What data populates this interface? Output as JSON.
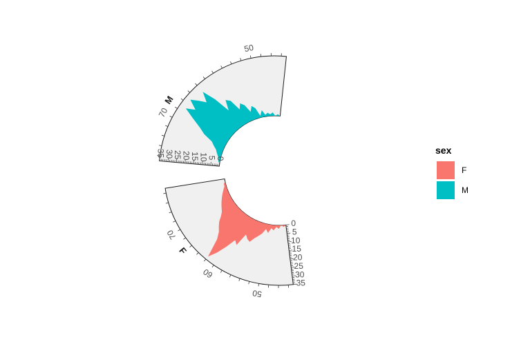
{
  "chart_data": {
    "type": "area",
    "coord": "polar",
    "title": "",
    "xlabel": "",
    "ylabel": "",
    "facets": [
      {
        "label": "M",
        "x_ticks": [
          50,
          60,
          70
        ],
        "x_tick_labels": [
          "50",
          "",
          "70"
        ],
        "y_ticks": [
          0,
          5,
          10,
          15,
          20,
          25,
          30,
          35
        ],
        "y_tick_labels": [
          "0",
          "5",
          "10",
          "15",
          "20",
          "25",
          "30",
          "35"
        ]
      },
      {
        "label": "F",
        "x_ticks": [
          50,
          60,
          70
        ],
        "x_tick_labels": [
          "50",
          "60",
          "70"
        ],
        "y_ticks": [
          0,
          5,
          10,
          15,
          20,
          25,
          30,
          35
        ],
        "y_tick_labels": [
          "0",
          "5",
          "10",
          "15",
          "20",
          "25",
          "30",
          "35"
        ]
      }
    ],
    "xlim": [
      43,
      79
    ],
    "ylim": [
      0,
      35
    ],
    "series": [
      {
        "name": "M",
        "color": "#00BFC4",
        "x": [
          43,
          44,
          45,
          46,
          47,
          48,
          49,
          50,
          51,
          52,
          53,
          54,
          55,
          56,
          57,
          58,
          59,
          60,
          61,
          62,
          63,
          64,
          65,
          66,
          67,
          68,
          69,
          70,
          71,
          72,
          73,
          74,
          75,
          76,
          77,
          78,
          79
        ],
        "values": [
          0,
          1,
          0,
          2,
          1,
          2,
          1,
          4,
          1,
          6,
          8,
          5,
          10,
          12,
          9,
          16,
          18,
          12,
          22,
          30,
          24,
          28,
          32,
          26,
          31,
          24,
          18,
          14,
          8,
          6,
          4,
          3,
          2,
          1,
          1,
          0,
          0
        ]
      },
      {
        "name": "F",
        "color": "#F8766D",
        "x": [
          43,
          44,
          45,
          46,
          47,
          48,
          49,
          50,
          51,
          52,
          53,
          54,
          55,
          56,
          57,
          58,
          59,
          60,
          61,
          62,
          63,
          64,
          65,
          66,
          67,
          68,
          69,
          70,
          71,
          72,
          73,
          74,
          75,
          76,
          77,
          78,
          79
        ],
        "values": [
          0,
          1,
          0,
          2,
          1,
          3,
          2,
          5,
          3,
          6,
          8,
          10,
          13,
          12,
          10,
          18,
          16,
          22,
          28,
          33,
          22,
          18,
          16,
          14,
          11,
          9,
          8,
          7,
          6,
          5,
          4,
          3,
          2,
          1,
          1,
          0,
          0
        ]
      }
    ],
    "legend": {
      "title": "sex",
      "position": "right",
      "entries": [
        {
          "label": "F",
          "color": "#F8766D"
        },
        {
          "label": "M",
          "color": "#00BFC4"
        }
      ]
    },
    "panel_background": "#F0F0F0",
    "grid": false
  }
}
